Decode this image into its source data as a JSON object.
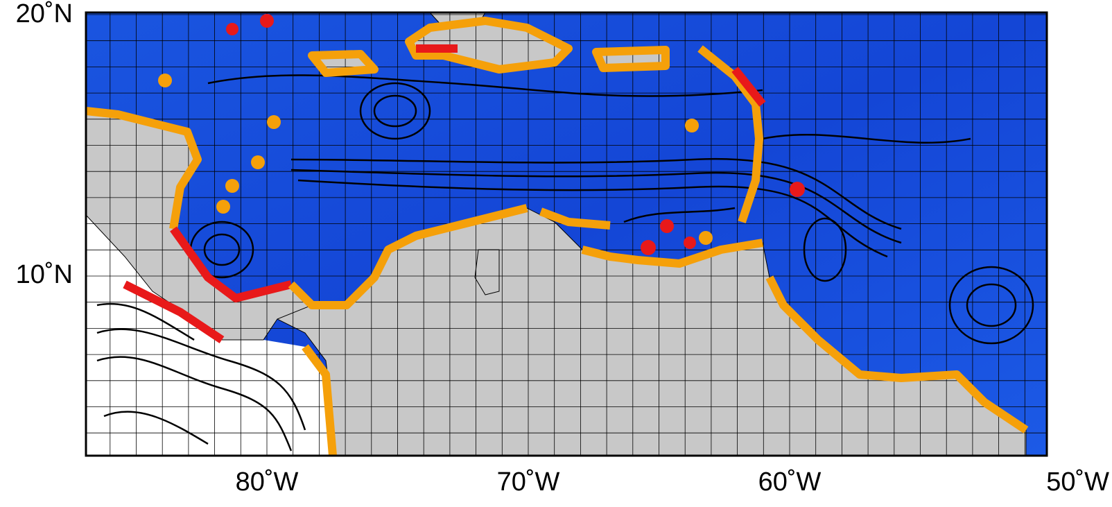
{
  "map": {
    "lat_labels": [
      "20˚N",
      "10˚N"
    ],
    "lon_labels": [
      "80˚W",
      "70˚W",
      "60˚W",
      "50˚W"
    ]
  }
}
